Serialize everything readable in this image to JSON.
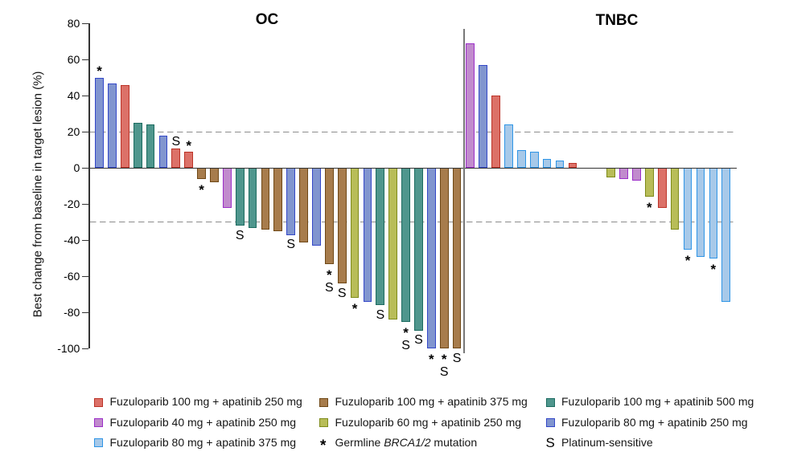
{
  "chart_data": {
    "type": "bar",
    "subtype": "waterfall",
    "ylabel": "Best change from baseline in target lesion (%)",
    "yticks": [
      80,
      60,
      40,
      20,
      0,
      -20,
      -40,
      -60,
      -80,
      -100
    ],
    "ylim": [
      -100,
      80
    ],
    "reference_lines": [
      20,
      -30
    ],
    "grid": false,
    "annotation_flags": {
      "star": "Germline BRCA1/2 mutation",
      "S": "Platinum-sensitive"
    },
    "panels": [
      {
        "title": "OC",
        "bars": [
          {
            "value": 50,
            "group": "f80a250",
            "flag": "star"
          },
          {
            "value": 47,
            "group": "f80a250",
            "flag": ""
          },
          {
            "value": 46,
            "group": "f100a250",
            "flag": ""
          },
          {
            "value": 25,
            "group": "f100a500",
            "flag": ""
          },
          {
            "value": 24,
            "group": "f100a500",
            "flag": ""
          },
          {
            "value": 18,
            "group": "f80a250",
            "flag": ""
          },
          {
            "value": 11,
            "group": "f100a250",
            "flag": "S"
          },
          {
            "value": 9,
            "group": "f100a250",
            "flag": "star"
          },
          {
            "value": -6,
            "group": "f100a375",
            "flag": "star"
          },
          {
            "value": -8,
            "group": "f100a375",
            "flag": ""
          },
          {
            "value": -22,
            "group": "f40a250",
            "flag": ""
          },
          {
            "value": -32,
            "group": "f100a500",
            "flag": "S"
          },
          {
            "value": -33,
            "group": "f100a500",
            "flag": ""
          },
          {
            "value": -34,
            "group": "f100a375",
            "flag": ""
          },
          {
            "value": -35,
            "group": "f100a375",
            "flag": ""
          },
          {
            "value": -37,
            "group": "f80a250",
            "flag": "S"
          },
          {
            "value": -41,
            "group": "f100a375",
            "flag": ""
          },
          {
            "value": -43,
            "group": "f80a250",
            "flag": ""
          },
          {
            "value": -53,
            "group": "f100a375",
            "flag": "starS"
          },
          {
            "value": -64,
            "group": "f100a375",
            "flag": "S"
          },
          {
            "value": -72,
            "group": "f60a250",
            "flag": "star"
          },
          {
            "value": -74,
            "group": "f80a250",
            "flag": ""
          },
          {
            "value": -76,
            "group": "f100a500",
            "flag": "S"
          },
          {
            "value": -84,
            "group": "f60a250",
            "flag": ""
          },
          {
            "value": -85,
            "group": "f100a500",
            "flag": "starS"
          },
          {
            "value": -90,
            "group": "f100a500",
            "flag": "S"
          },
          {
            "value": -100,
            "group": "f80a250",
            "flag": "star"
          },
          {
            "value": -100,
            "group": "f100a375",
            "flag": "starS"
          },
          {
            "value": -100,
            "group": "f100a375",
            "flag": "S"
          }
        ]
      },
      {
        "title": "TNBC",
        "bars": [
          {
            "value": 69,
            "group": "f40a250",
            "flag": ""
          },
          {
            "value": 57,
            "group": "f80a250",
            "flag": ""
          },
          {
            "value": 40,
            "group": "f100a250",
            "flag": ""
          },
          {
            "value": 24,
            "group": "f80a375",
            "flag": ""
          },
          {
            "value": 10,
            "group": "f80a375",
            "flag": ""
          },
          {
            "value": 9,
            "group": "f80a375",
            "flag": ""
          },
          {
            "value": 5,
            "group": "f80a375",
            "flag": ""
          },
          {
            "value": 4,
            "group": "f80a375",
            "flag": ""
          },
          {
            "value": 3,
            "group": "f100a250",
            "flag": ""
          },
          {
            "value": 0,
            "group": "",
            "flag": ""
          },
          {
            "value": 0,
            "group": "",
            "flag": ""
          },
          {
            "value": -5,
            "group": "f60a250",
            "flag": ""
          },
          {
            "value": -6,
            "group": "f40a250",
            "flag": ""
          },
          {
            "value": -7,
            "group": "f40a250",
            "flag": ""
          },
          {
            "value": -16,
            "group": "f60a250",
            "flag": "star"
          },
          {
            "value": -22,
            "group": "f100a250",
            "flag": ""
          },
          {
            "value": -34,
            "group": "f60a250",
            "flag": ""
          },
          {
            "value": -45,
            "group": "f80a375",
            "flag": "star"
          },
          {
            "value": -49,
            "group": "f80a375",
            "flag": ""
          },
          {
            "value": -50,
            "group": "f80a375",
            "flag": "star"
          },
          {
            "value": -74,
            "group": "f80a375",
            "flag": ""
          }
        ]
      }
    ],
    "groups": {
      "f100a250": {
        "label": "Fuzuloparib 100 mg + apatinib 250 mg",
        "fill": "#dc7168",
        "border": "#bc3328"
      },
      "f100a375": {
        "label": "Fuzuloparib 100 mg + apatinib 375 mg",
        "fill": "#a77c4c",
        "border": "#6f4816"
      },
      "f100a500": {
        "label": "Fuzuloparib 100 mg + apatinib 500 mg",
        "fill": "#4f968d",
        "border": "#1c6b60"
      },
      "f40a250": {
        "label": "Fuzuloparib 40 mg + apatinib 250 mg",
        "fill": "#c18bcd",
        "border": "#9c2fc9"
      },
      "f60a250": {
        "label": "Fuzuloparib 60 mg + apatinib 250 mg",
        "fill": "#b8bd58",
        "border": "#7e8b1a"
      },
      "f80a250": {
        "label": "Fuzuloparib 80 mg + apatinib 250 mg",
        "fill": "#8195cf",
        "border": "#3448c8"
      },
      "f80a375": {
        "label": "Fuzuloparib 80 mg + apatinib 375 mg",
        "fill": "#a7c9e9",
        "border": "#2f95e6"
      }
    },
    "legend": {
      "rows": [
        [
          {
            "type": "swatch",
            "group": "f100a250"
          },
          {
            "type": "swatch",
            "group": "f100a375"
          },
          {
            "type": "swatch",
            "group": "f100a500"
          }
        ],
        [
          {
            "type": "swatch",
            "group": "f40a250"
          },
          {
            "type": "swatch",
            "group": "f60a250"
          },
          {
            "type": "swatch",
            "group": "f80a250"
          }
        ],
        [
          {
            "type": "swatch",
            "group": "f80a375"
          },
          {
            "type": "symbol",
            "symbol": "*",
            "label_prefix": "Germline ",
            "label_italic": "BRCA1/2",
            "label_suffix": " mutation"
          },
          {
            "type": "symbol",
            "symbol": "S",
            "label": "Platinum-sensitive"
          }
        ]
      ]
    }
  }
}
